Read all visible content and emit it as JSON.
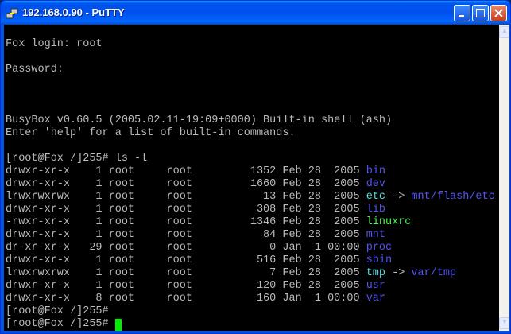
{
  "window": {
    "title": "192.168.0.90 - PuTTY"
  },
  "colors": {
    "default": "#bbbbbb",
    "directory": "#5555ee",
    "symlink": "#55dddd",
    "executable": "#55ee55",
    "cursor": "#00ee00",
    "background": "#000000"
  },
  "terminal": {
    "lines": [
      [],
      [
        {
          "t": "Fox login: root"
        }
      ],
      [],
      [
        {
          "t": "Password:"
        }
      ],
      [],
      [],
      [],
      [
        {
          "t": "BusyBox v0.60.5 (2005.02.11-19:09+0000) Built-in shell (ash)"
        }
      ],
      [
        {
          "t": "Enter 'help' for a list of built-in commands."
        }
      ],
      [],
      [
        {
          "t": "[root@Fox /]255# ls -l"
        }
      ],
      [
        {
          "t": "drwxr-xr-x    1 root     root         1352 Feb 28  2005 "
        },
        {
          "t": "bin",
          "c": "directory"
        }
      ],
      [
        {
          "t": "drwxr-xr-x    1 root     root         1660 Feb 28  2005 "
        },
        {
          "t": "dev",
          "c": "directory"
        }
      ],
      [
        {
          "t": "lrwxrwxrwx    1 root     root           13 Feb 28  2005 "
        },
        {
          "t": "etc",
          "c": "symlink"
        },
        {
          "t": " -> "
        },
        {
          "t": "mnt/flash/etc",
          "c": "directory"
        }
      ],
      [
        {
          "t": "drwxr-xr-x    1 root     root          308 Feb 28  2005 "
        },
        {
          "t": "lib",
          "c": "directory"
        }
      ],
      [
        {
          "t": "-rwxr-xr-x    1 root     root         1346 Feb 28  2005 "
        },
        {
          "t": "linuxrc",
          "c": "executable"
        }
      ],
      [
        {
          "t": "drwxr-xr-x    1 root     root           84 Feb 28  2005 "
        },
        {
          "t": "mnt",
          "c": "directory"
        }
      ],
      [
        {
          "t": "dr-xr-xr-x   29 root     root            0 Jan  1 00:00 "
        },
        {
          "t": "proc",
          "c": "directory"
        }
      ],
      [
        {
          "t": "drwxr-xr-x    1 root     root          516 Feb 28  2005 "
        },
        {
          "t": "sbin",
          "c": "directory"
        }
      ],
      [
        {
          "t": "lrwxrwxrwx    1 root     root            7 Feb 28  2005 "
        },
        {
          "t": "tmp",
          "c": "symlink"
        },
        {
          "t": " -> "
        },
        {
          "t": "var/tmp",
          "c": "directory"
        }
      ],
      [
        {
          "t": "drwxr-xr-x    1 root     root          120 Feb 28  2005 "
        },
        {
          "t": "usr",
          "c": "directory"
        }
      ],
      [
        {
          "t": "drwxr-xr-x    8 root     root          160 Jan  1 00:00 "
        },
        {
          "t": "var",
          "c": "directory"
        }
      ],
      [
        {
          "t": "[root@Fox /]255#"
        }
      ],
      [
        {
          "t": "[root@Fox /]255# "
        },
        {
          "cursor": true
        }
      ]
    ]
  }
}
